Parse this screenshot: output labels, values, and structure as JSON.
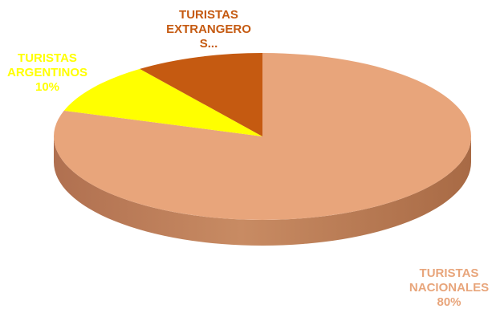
{
  "chart_data": {
    "type": "pie",
    "style": "3d-exploded-none",
    "slices": [
      {
        "name": "TURISTAS NACIONALES",
        "value": 80,
        "label_lines": [
          "TURISTAS",
          "NACIONALES",
          "80%"
        ],
        "color": "#E8A57B",
        "side_color": "#C07F55",
        "label_color": "#E8A57B"
      },
      {
        "name": "TURISTAS ARGENTINOS",
        "value": 10,
        "label_lines": [
          "TURISTAS",
          "ARGENTINOS",
          "10%"
        ],
        "color": "#FFFF00",
        "side_color": "#CCCC00",
        "label_color": "#FFFF00"
      },
      {
        "name": "TURISTAS EXTRANGEROS",
        "value": 10,
        "label_lines": [
          "TURISTAS",
          "EXTRANGERO",
          "S..."
        ],
        "color": "#C55A11",
        "side_color": "#8E3E08",
        "label_color": "#C55A11"
      }
    ]
  }
}
